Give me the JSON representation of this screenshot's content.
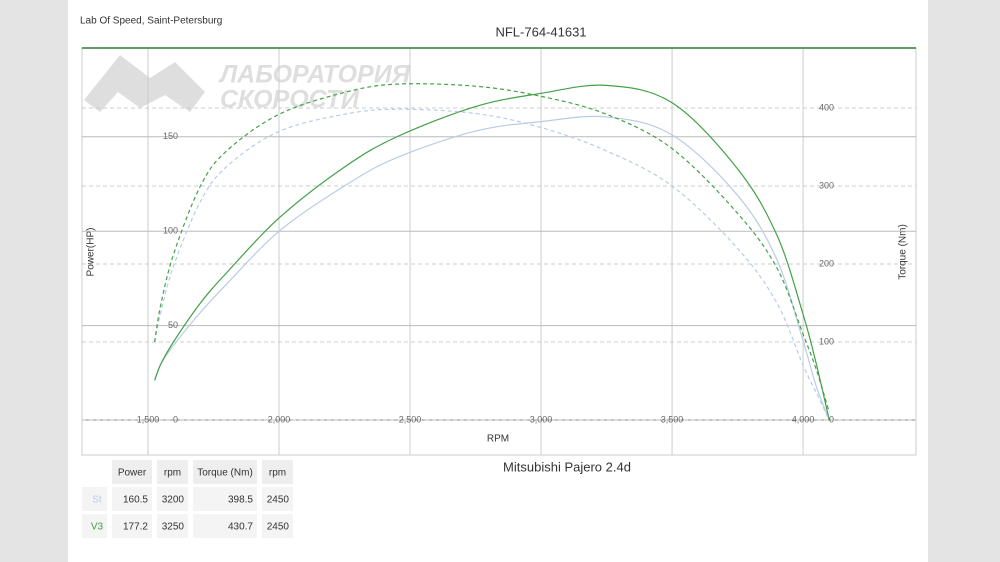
{
  "header": {
    "lab": "Lab Of Speed, Saint-Petersburg",
    "watermark": [
      "ЛАБОРАТОРИЯ",
      "СКОРОСТИ"
    ]
  },
  "chart_data": {
    "type": "line",
    "title": "NFL-764-41631",
    "subtitle": "Mitsubishi Pajero 2.4d",
    "x_label": "RPM",
    "y_label": "Power(HP)",
    "y2_label": "Torque (Nm)",
    "x": [
      1525,
      1550,
      1600,
      1700,
      1800,
      2000,
      2250,
      2450,
      2750,
      3000,
      3250,
      3500,
      3750,
      3900,
      4000,
      4050,
      4100
    ],
    "series": [
      {
        "name": "St",
        "color": "#b9cce6",
        "dashed": false,
        "values": [
          21,
          30,
          40,
          57,
          72,
          100,
          124,
          139,
          153,
          158,
          160.5,
          151,
          119,
          85,
          42,
          18,
          0
        ]
      },
      {
        "name": "V3",
        "color": "#43a047",
        "dashed": false,
        "values": [
          21,
          30,
          42,
          62,
          78,
          107,
          134,
          150,
          166,
          173,
          177.2,
          168,
          133,
          98,
          56,
          30,
          0
        ]
      },
      {
        "name": "St",
        "color": "#b9cce6",
        "dashed": true,
        "axis": "y2",
        "values": [
          100,
          140,
          200,
          280,
          325,
          370,
          392,
          398.5,
          393,
          375,
          345,
          300,
          220,
          150,
          70,
          35,
          0
        ]
      },
      {
        "name": "V3",
        "color": "#43a047",
        "dashed": true,
        "axis": "y2",
        "values": [
          100,
          150,
          215,
          300,
          345,
          392,
          420,
          430.7,
          428,
          415,
          392,
          348,
          265,
          195,
          110,
          65,
          10
        ]
      }
    ],
    "xlim": [
      1248,
      4431
    ],
    "ylim": [
      -18.5,
      197
    ],
    "y2lim": [
      -45,
      477
    ],
    "xticks": [
      {
        "value": 1500,
        "label": "1,500"
      },
      {
        "value": 2000,
        "label": "2,000"
      },
      {
        "value": 2500,
        "label": "2,500"
      },
      {
        "value": 3000,
        "label": "3,000"
      },
      {
        "value": 3500,
        "label": "3,500"
      },
      {
        "value": 4000,
        "label": "4,000"
      }
    ],
    "yticks": [
      0,
      50,
      100,
      150
    ],
    "y2ticks": [
      0,
      100,
      200,
      300,
      400
    ],
    "grid": true
  },
  "table": {
    "columns": [
      "Power",
      "rpm",
      "Torque (Nm)",
      "rpm"
    ],
    "rows": [
      [
        160.5,
        3200,
        398.5,
        2450
      ],
      [
        177.2,
        3250,
        430.7,
        2450
      ]
    ]
  }
}
